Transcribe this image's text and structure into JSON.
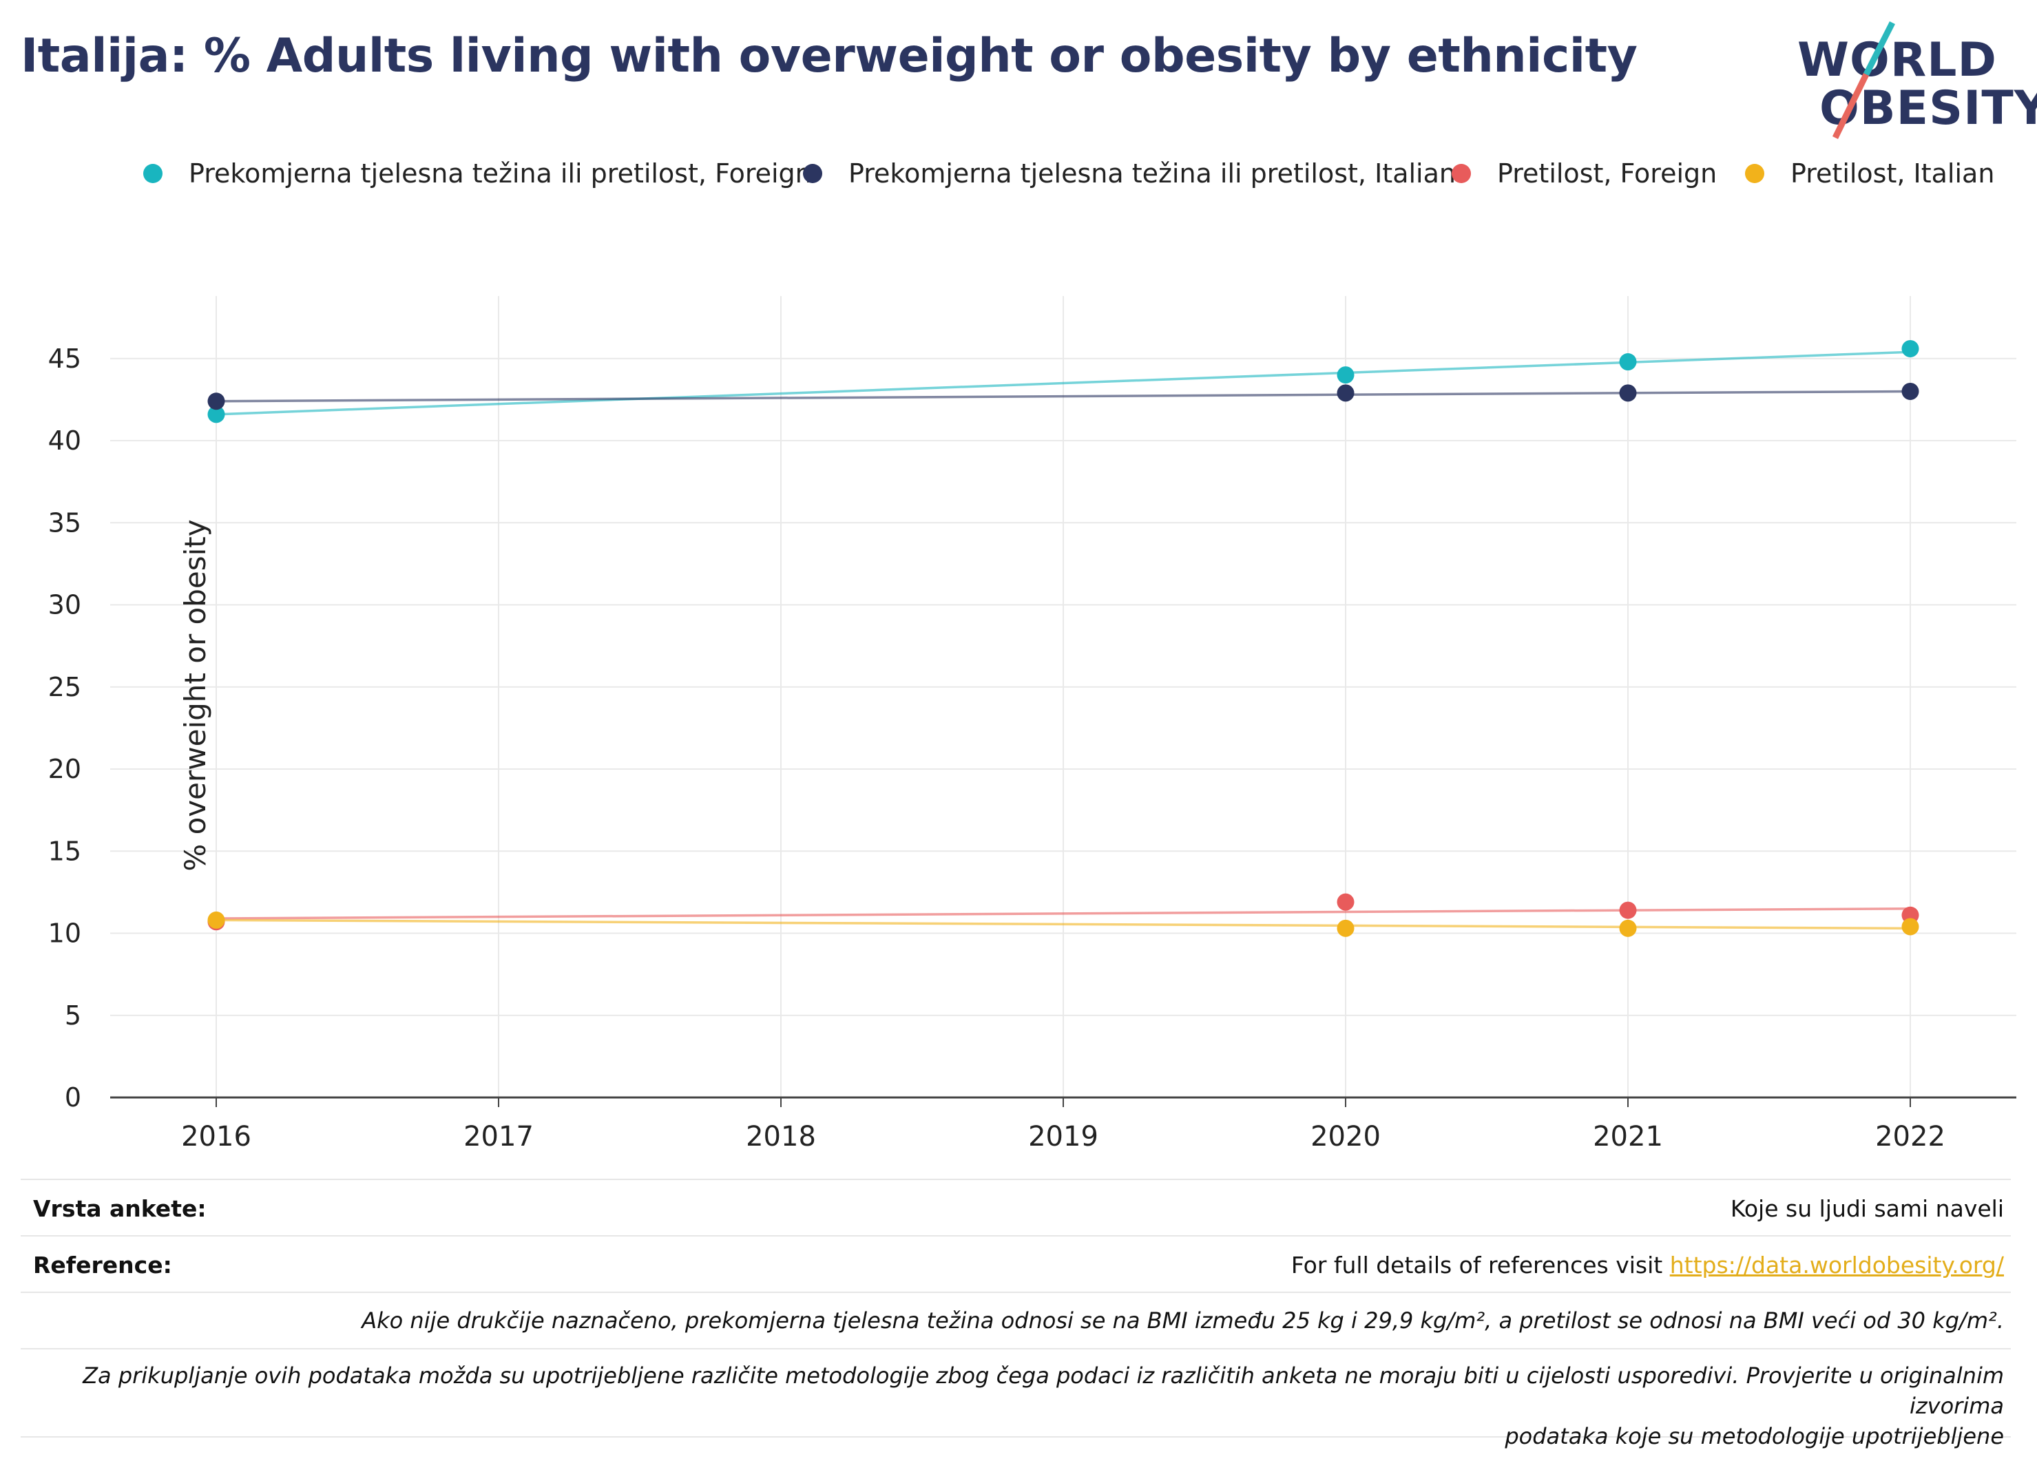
{
  "title": "Italija: % Adults living with overweight or obesity by ethnicity",
  "logo": {
    "line1": "WORLD",
    "line2": "OBESITY",
    "accent_teal": "#2bb8bd",
    "accent_red": "#e8675d"
  },
  "colors": {
    "title": "#2b3560",
    "teal": "#19b5bf",
    "navy": "#2b3560",
    "red": "#e85b5b",
    "yellow": "#f2b21b"
  },
  "chart_data": {
    "type": "line",
    "x": [
      "2016",
      "2017",
      "2018",
      "2019",
      "2020",
      "2021",
      "2022"
    ],
    "ylabel": "% overweight or obesity",
    "xlabel": "",
    "ylim": [
      0,
      48
    ],
    "yticks": [
      0,
      5,
      10,
      15,
      20,
      25,
      30,
      35,
      40,
      45
    ],
    "grid": true,
    "legend_position": "top",
    "series": [
      {
        "name": "Prekomjerna tjelesna težina ili pretilost, Foreign",
        "color": "#19b5bf",
        "points": [
          [
            2016,
            41.6
          ],
          [
            2020,
            44.0
          ],
          [
            2021,
            44.8
          ],
          [
            2022,
            45.6
          ]
        ],
        "trend": [
          [
            2016,
            41.6
          ],
          [
            2022,
            45.4
          ]
        ]
      },
      {
        "name": "Prekomjerna tjelesna težina ili pretilost, Italian",
        "color": "#2b3560",
        "points": [
          [
            2016,
            42.4
          ],
          [
            2020,
            42.9
          ],
          [
            2021,
            42.9
          ],
          [
            2022,
            43.0
          ]
        ],
        "trend": [
          [
            2016,
            42.4
          ],
          [
            2022,
            43.0
          ]
        ]
      },
      {
        "name": "Pretilost, Foreign",
        "color": "#e85b5b",
        "points": [
          [
            2016,
            10.7
          ],
          [
            2020,
            11.9
          ],
          [
            2021,
            11.4
          ],
          [
            2022,
            11.1
          ]
        ],
        "trend": [
          [
            2016,
            10.9
          ],
          [
            2022,
            11.5
          ]
        ]
      },
      {
        "name": "Pretilost, Italian",
        "color": "#f2b21b",
        "points": [
          [
            2016,
            10.8
          ],
          [
            2020,
            10.3
          ],
          [
            2021,
            10.3
          ],
          [
            2022,
            10.4
          ]
        ],
        "trend": [
          [
            2016,
            10.8
          ],
          [
            2022,
            10.3
          ]
        ]
      }
    ]
  },
  "footer": {
    "survey_label": "Vrsta ankete:",
    "survey_value": "Koje su ljudi sami naveli",
    "reference_label": "Reference:",
    "reference_text": "For full details of references visit ",
    "reference_link": "https://data.worldobesity.org/",
    "note1": "Ako nije drukčije naznačeno, prekomjerna tjelesna težina odnosi se na BMI između 25 kg i 29,9 kg/m², a pretilost se odnosi na BMI veći od 30 kg/m².",
    "note2_line1": "Za prikupljanje ovih podataka možda su upotrijebljene različite metodologije zbog čega podaci iz različitih anketa ne moraju biti u cijelosti usporedivi. Provjerite u originalnim izvorima",
    "note2_line2": "podataka koje su metodologije upotrijebljene"
  }
}
